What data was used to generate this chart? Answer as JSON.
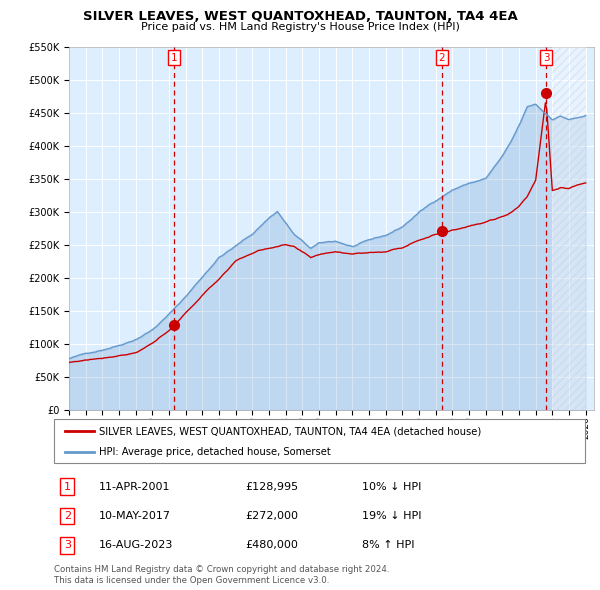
{
  "title": "SILVER LEAVES, WEST QUANTOXHEAD, TAUNTON, TA4 4EA",
  "subtitle": "Price paid vs. HM Land Registry's House Price Index (HPI)",
  "legend_line1": "SILVER LEAVES, WEST QUANTOXHEAD, TAUNTON, TA4 4EA (detached house)",
  "legend_line2": "HPI: Average price, detached house, Somerset",
  "footer1": "Contains HM Land Registry data © Crown copyright and database right 2024.",
  "footer2": "This data is licensed under the Open Government Licence v3.0.",
  "table": [
    {
      "num": "1",
      "date": "11-APR-2001",
      "price": "£128,995",
      "hpi": "10% ↓ HPI"
    },
    {
      "num": "2",
      "date": "10-MAY-2017",
      "price": "£272,000",
      "hpi": "19% ↓ HPI"
    },
    {
      "num": "3",
      "date": "16-AUG-2023",
      "price": "£480,000",
      "hpi": "8% ↑ HPI"
    }
  ],
  "sale_dates_year": [
    2001.28,
    2017.36,
    2023.62
  ],
  "sale_prices": [
    128995,
    272000,
    480000
  ],
  "hpi_color": "#6699cc",
  "red_color": "#cc0000",
  "bg_color": "#ddeeff",
  "ylim": [
    0,
    550000
  ],
  "xlim_start": 1995,
  "xlim_end": 2026.5,
  "yticks": [
    0,
    50000,
    100000,
    150000,
    200000,
    250000,
    300000,
    350000,
    400000,
    450000,
    500000,
    550000
  ],
  "hpi_waypoints_years": [
    1995.0,
    1996.0,
    1997.0,
    1998.0,
    1999.0,
    2000.0,
    2001.0,
    2002.0,
    2003.0,
    2004.0,
    2005.0,
    2006.0,
    2007.0,
    2007.5,
    2008.5,
    2009.5,
    2010.0,
    2011.0,
    2012.0,
    2013.0,
    2014.0,
    2015.0,
    2016.0,
    2017.0,
    2018.0,
    2019.0,
    2020.0,
    2021.0,
    2021.5,
    2022.0,
    2022.5,
    2023.0,
    2023.5,
    2024.0,
    2024.5,
    2025.0,
    2025.5,
    2026.0
  ],
  "hpi_waypoints_vals": [
    78000,
    85000,
    92000,
    100000,
    110000,
    125000,
    148000,
    175000,
    205000,
    235000,
    252000,
    270000,
    295000,
    305000,
    270000,
    248000,
    255000,
    258000,
    250000,
    258000,
    265000,
    278000,
    300000,
    318000,
    335000,
    345000,
    352000,
    385000,
    405000,
    430000,
    458000,
    462000,
    450000,
    440000,
    445000,
    440000,
    442000,
    445000
  ],
  "red_waypoints_years": [
    1995.0,
    1996.0,
    1997.0,
    1998.0,
    1999.0,
    2000.0,
    2001.0,
    2001.28,
    2002.0,
    2003.0,
    2004.0,
    2005.0,
    2006.0,
    2007.0,
    2008.0,
    2008.5,
    2009.5,
    2010.0,
    2011.0,
    2012.0,
    2013.0,
    2014.0,
    2015.0,
    2016.0,
    2017.0,
    2017.36,
    2018.0,
    2019.0,
    2020.0,
    2021.0,
    2021.5,
    2022.0,
    2022.5,
    2023.0,
    2023.62,
    2024.0,
    2024.5,
    2025.0,
    2025.5,
    2026.0
  ],
  "red_waypoints_vals": [
    72000,
    76000,
    80000,
    85000,
    90000,
    105000,
    122000,
    128995,
    148000,
    175000,
    200000,
    228000,
    240000,
    248000,
    252000,
    248000,
    230000,
    235000,
    240000,
    238000,
    240000,
    242000,
    248000,
    262000,
    270000,
    272000,
    278000,
    285000,
    290000,
    298000,
    305000,
    315000,
    330000,
    355000,
    480000,
    340000,
    345000,
    342000,
    348000,
    350000
  ]
}
